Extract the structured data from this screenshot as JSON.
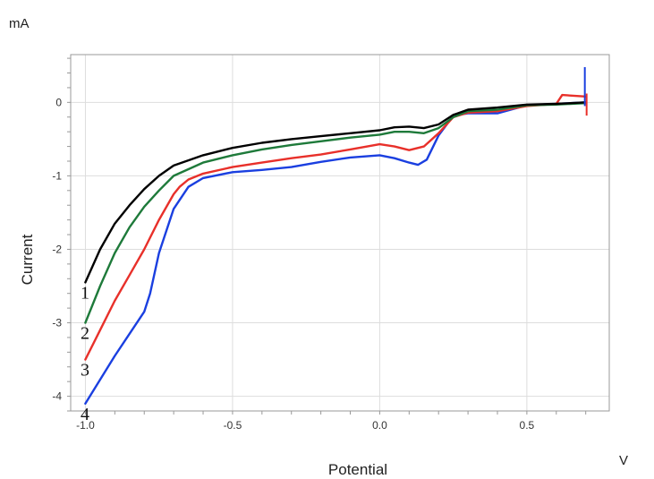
{
  "chart_data": {
    "type": "line",
    "xlabel": "Potential",
    "ylabel": "Current",
    "x_unit": "V",
    "y_unit": "mA",
    "xlim": [
      -1.05,
      0.78
    ],
    "ylim": [
      -4.2,
      0.65
    ],
    "grid": true,
    "x_ticks": [
      {
        "value": -1.0,
        "label": "-1.0"
      },
      {
        "value": -0.5,
        "label": "-0.5"
      },
      {
        "value": 0.0,
        "label": "0.0"
      },
      {
        "value": 0.5,
        "label": "0.5"
      }
    ],
    "y_ticks": [
      {
        "value": 0,
        "label": "0"
      },
      {
        "value": -1,
        "label": "-1"
      },
      {
        "value": -2,
        "label": "-2"
      },
      {
        "value": -3,
        "label": "-3"
      },
      {
        "value": -4,
        "label": "-4"
      }
    ],
    "series": [
      {
        "label": "1",
        "color": "#000000",
        "x": [
          -1.0,
          -0.95,
          -0.9,
          -0.85,
          -0.8,
          -0.75,
          -0.7,
          -0.6,
          -0.5,
          -0.4,
          -0.3,
          -0.2,
          -0.1,
          0.0,
          0.05,
          0.1,
          0.15,
          0.2,
          0.25,
          0.3,
          0.4,
          0.5,
          0.6,
          0.7
        ],
        "y": [
          -2.45,
          -2.0,
          -1.65,
          -1.4,
          -1.18,
          -1.0,
          -0.86,
          -0.72,
          -0.62,
          -0.55,
          -0.5,
          -0.46,
          -0.42,
          -0.38,
          -0.34,
          -0.33,
          -0.35,
          -0.3,
          -0.17,
          -0.1,
          -0.07,
          -0.03,
          -0.02,
          0.0
        ]
      },
      {
        "label": "2",
        "color": "#1e7a3a",
        "x": [
          -1.0,
          -0.95,
          -0.9,
          -0.85,
          -0.8,
          -0.75,
          -0.7,
          -0.6,
          -0.5,
          -0.4,
          -0.3,
          -0.2,
          -0.1,
          0.0,
          0.05,
          0.1,
          0.15,
          0.2,
          0.25,
          0.3,
          0.4,
          0.5,
          0.6,
          0.7
        ],
        "y": [
          -3.0,
          -2.5,
          -2.05,
          -1.7,
          -1.42,
          -1.2,
          -1.0,
          -0.82,
          -0.72,
          -0.64,
          -0.58,
          -0.53,
          -0.48,
          -0.44,
          -0.4,
          -0.4,
          -0.42,
          -0.35,
          -0.2,
          -0.12,
          -0.1,
          -0.04,
          -0.03,
          -0.01
        ]
      },
      {
        "label": "3",
        "color": "#e8302a",
        "x": [
          -1.0,
          -0.95,
          -0.9,
          -0.85,
          -0.8,
          -0.75,
          -0.7,
          -0.68,
          -0.65,
          -0.6,
          -0.5,
          -0.4,
          -0.3,
          -0.2,
          -0.1,
          0.0,
          0.05,
          0.1,
          0.15,
          0.2,
          0.25,
          0.3,
          0.4,
          0.5,
          0.6,
          0.62,
          0.7
        ],
        "y": [
          -3.5,
          -3.1,
          -2.7,
          -2.35,
          -2.0,
          -1.6,
          -1.25,
          -1.15,
          -1.05,
          -0.97,
          -0.88,
          -0.82,
          -0.76,
          -0.71,
          -0.64,
          -0.57,
          -0.6,
          -0.65,
          -0.6,
          -0.42,
          -0.2,
          -0.14,
          -0.12,
          -0.05,
          -0.02,
          0.1,
          0.08
        ]
      },
      {
        "label": "4",
        "color": "#1a3fe0",
        "x": [
          -1.0,
          -0.9,
          -0.8,
          -0.78,
          -0.75,
          -0.7,
          -0.65,
          -0.6,
          -0.5,
          -0.4,
          -0.3,
          -0.2,
          -0.1,
          0.0,
          0.05,
          0.1,
          0.13,
          0.16,
          0.2,
          0.25,
          0.3,
          0.4,
          0.5,
          0.6,
          0.7
        ],
        "y": [
          -4.1,
          -3.45,
          -2.85,
          -2.6,
          -2.05,
          -1.45,
          -1.15,
          -1.03,
          -0.95,
          -0.92,
          -0.88,
          -0.81,
          -0.75,
          -0.72,
          -0.76,
          -0.82,
          -0.85,
          -0.78,
          -0.45,
          -0.18,
          -0.15,
          -0.15,
          -0.04,
          -0.02,
          0.0
        ]
      }
    ]
  }
}
